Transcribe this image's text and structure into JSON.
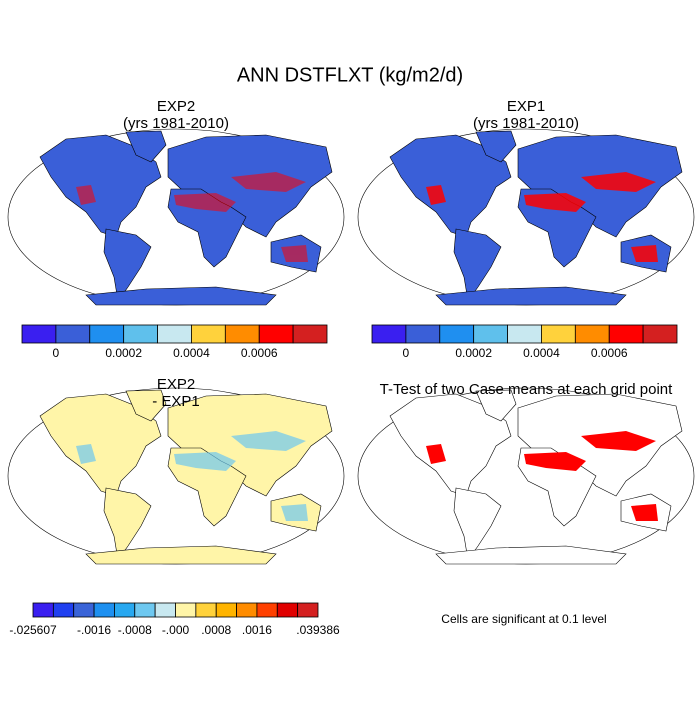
{
  "title": "ANN DSTFLXT (kg/m2/d)",
  "panels": [
    {
      "title_lines": [
        "EXP2",
        "(yrs 1981-2010)"
      ]
    },
    {
      "title_lines": [
        "EXP1",
        "(yrs 1981-2010)"
      ]
    },
    {
      "title_lines": [
        "EXP2",
        "- EXP1"
      ]
    },
    {
      "title_lines": [
        "T-Test of two Case means at each grid point"
      ]
    }
  ],
  "colorbars": [
    {
      "colors": [
        "#3a1ff0",
        "#3a5fd8",
        "#1f8ff0",
        "#5fc0ec",
        "#c8e8f0",
        "#ffd23c",
        "#ff8c00",
        "#ff0000",
        "#d42020"
      ],
      "labels": [
        null,
        "0",
        null,
        "0.0002",
        null,
        "0.0004",
        null,
        "0.0006",
        null,
        null
      ]
    },
    {
      "colors": [
        "#3a1ff0",
        "#3a5fd8",
        "#1f8ff0",
        "#5fc0ec",
        "#c8e8f0",
        "#ffd23c",
        "#ff8c00",
        "#ff0000",
        "#d42020"
      ],
      "labels": [
        null,
        "0",
        null,
        "0.0002",
        null,
        "0.0004",
        null,
        "0.0006",
        null,
        null
      ]
    },
    {
      "colors": [
        "#3a1ff0",
        "#2040f0",
        "#3a64d8",
        "#1e90f0",
        "#28a8f0",
        "#6ec8f0",
        "#c8e8f0",
        "#fff5a8",
        "#ffd23c",
        "#ffb400",
        "#ff8c00",
        "#ff4000",
        "#e00000",
        "#d42020"
      ],
      "labels": [
        "-.025607",
        null,
        null,
        "-.0016",
        null,
        "-.0008",
        null,
        "-.000",
        null,
        ".0008",
        null,
        ".0016",
        null,
        null,
        ".039386"
      ]
    }
  ],
  "note": "Cells are significant at 0.1 level"
}
